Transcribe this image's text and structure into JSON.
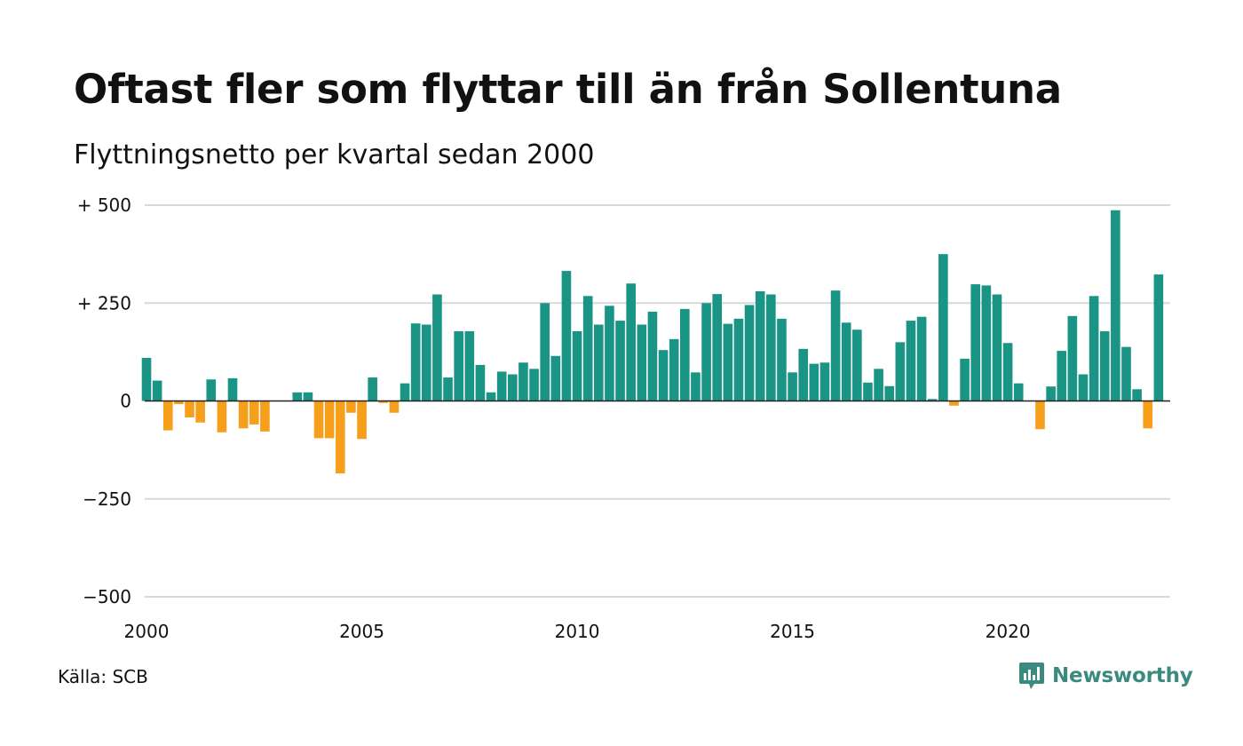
{
  "title": "Oftast fler som flyttar till än från Sollentuna",
  "subtitle": "Flyttningsnetto per kvartal sedan 2000",
  "source": "Källa: SCB",
  "brand": {
    "name": "Newsworthy",
    "icon": "newsworthy-logo-icon",
    "color": "#3b8a80"
  },
  "colors": {
    "positive": "#1a9585",
    "negative": "#f59f1b",
    "grid": "#d8d8d8",
    "zero_line": "#222222"
  },
  "chart_data": {
    "type": "bar",
    "x_ticks": [
      "2000",
      "2005",
      "2010",
      "2015",
      "2020"
    ],
    "y_ticks": [
      "+ 500",
      "+ 250",
      "0",
      "−250",
      "−500"
    ],
    "y_tick_values": [
      500,
      250,
      0,
      -250,
      -500
    ],
    "ylim": [
      -500,
      500
    ],
    "xlim": [
      2000,
      2023.75
    ],
    "grid": true,
    "x_start": 2000,
    "periods_per_year": 4,
    "values": [
      110,
      52,
      -75,
      -8,
      -42,
      -55,
      55,
      -80,
      58,
      -70,
      -60,
      -78,
      0,
      0,
      22,
      22,
      -95,
      -95,
      -185,
      -30,
      -97,
      60,
      -5,
      -30,
      45,
      198,
      195,
      272,
      60,
      178,
      178,
      92,
      22,
      75,
      68,
      98,
      82,
      250,
      115,
      332,
      178,
      268,
      195,
      243,
      205,
      300,
      195,
      228,
      130,
      158,
      235,
      73,
      250,
      273,
      197,
      210,
      245,
      280,
      272,
      210,
      73,
      133,
      95,
      98,
      282,
      200,
      182,
      47,
      82,
      38,
      150,
      205,
      215,
      5,
      375,
      -12,
      108,
      298,
      295,
      272,
      148,
      45,
      0,
      -72,
      37,
      128,
      217,
      68,
      268,
      178,
      487,
      138,
      30,
      -70,
      323
    ]
  }
}
